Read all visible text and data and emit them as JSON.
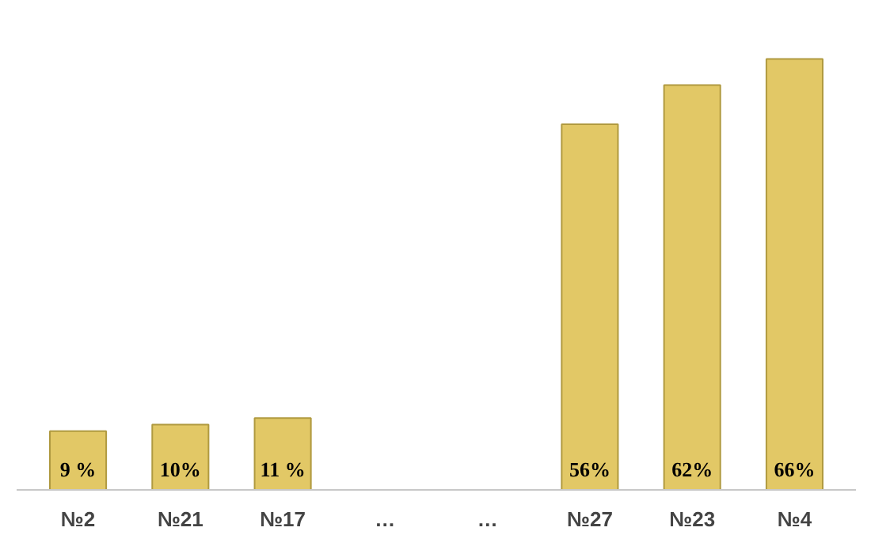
{
  "chart_data": {
    "type": "bar",
    "categories": [
      "№2",
      "№21",
      "№17",
      "…",
      "…",
      "№27",
      "№23",
      "№4"
    ],
    "values": [
      9,
      10,
      11,
      null,
      null,
      56,
      62,
      66
    ],
    "color": "#e2c866",
    "value_labels": [
      "9 %",
      "10%",
      "11 %",
      null,
      null,
      "56%",
      "62%",
      "66%"
    ],
    "grid": false
  }
}
